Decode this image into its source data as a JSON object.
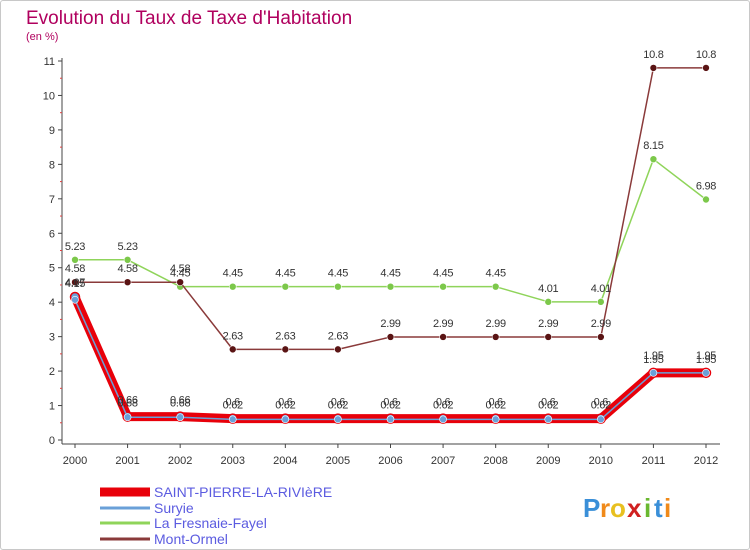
{
  "chart_data": {
    "type": "line",
    "title": "Evolution du Taux de Taxe d'Habitation",
    "subtitle": "(en %)",
    "xlabel": "",
    "ylabel": "",
    "x": [
      "2000",
      "2001",
      "2002",
      "2003",
      "2004",
      "2005",
      "2006",
      "2007",
      "2008",
      "2009",
      "2010",
      "2011",
      "2012"
    ],
    "y_ticks": [
      "0",
      "1",
      "2",
      "3",
      "4",
      "5",
      "6",
      "7",
      "8",
      "9",
      "10",
      "11"
    ],
    "ylim": [
      0,
      11
    ],
    "grid": false,
    "legend": "bottom-left",
    "series": [
      {
        "name": "SAINT-PIERRE-LA-RIVIèRE",
        "color": "#e8000a",
        "marker_color": "#6aa0d8",
        "values": [
          4.15,
          0.68,
          0.68,
          0.62,
          0.62,
          0.62,
          0.62,
          0.62,
          0.62,
          0.62,
          0.62,
          1.95,
          1.95
        ],
        "labels": [
          "4.15",
          "0.68",
          "0.68",
          "0.62",
          "0.62",
          "0.62",
          "0.62",
          "0.62",
          "0.62",
          "0.62",
          "0.62",
          "1.95",
          "1.95"
        ]
      },
      {
        "name": "Suryie",
        "color": "#6aa0d8",
        "marker_color": "#6aa0d8",
        "values": [
          4.07,
          0.66,
          0.66,
          0.6,
          0.6,
          0.6,
          0.6,
          0.6,
          0.6,
          0.6,
          0.6,
          1.95,
          1.95
        ],
        "labels": [
          "4.07",
          "0.66",
          "0.66",
          "0.6",
          "0.6",
          "0.6",
          "0.6",
          "0.6",
          "0.6",
          "0.6",
          "0.6",
          "1.95",
          "1.95"
        ]
      },
      {
        "name": "La Fresnaie-Fayel",
        "color": "#8fd45a",
        "marker_color": "#7cc84a",
        "values": [
          5.23,
          5.23,
          4.45,
          4.45,
          4.45,
          4.45,
          4.45,
          4.45,
          4.45,
          4.01,
          4.01,
          8.15,
          6.98
        ],
        "labels": [
          "5.23",
          "5.23",
          "4.45",
          "4.45",
          "4.45",
          "4.45",
          "4.45",
          "4.45",
          "4.45",
          "4.01",
          "4.01",
          "8.15",
          "6.98"
        ]
      },
      {
        "name": "Mont-Ormel",
        "color": "#8a3a3a",
        "marker_color": "#5a1414",
        "values": [
          4.58,
          4.58,
          4.58,
          2.63,
          2.63,
          2.63,
          2.99,
          2.99,
          2.99,
          2.99,
          2.99,
          10.8,
          10.8
        ],
        "labels": [
          "4.58",
          "4.58",
          "4.58",
          "2.63",
          "2.63",
          "2.63",
          "2.99",
          "2.99",
          "2.99",
          "2.99",
          "2.99",
          "10.8",
          "10.8"
        ]
      }
    ]
  },
  "brand": {
    "logo_text": "Proxiti",
    "logo_letters": [
      "P",
      "r",
      "o",
      "x",
      "i",
      "t",
      "i"
    ],
    "logo_colors": [
      "#3a8fd8",
      "#f08a1a",
      "#e8c020",
      "#d02020",
      "#6ab830",
      "#3a8fd8",
      "#f08a1a"
    ]
  }
}
